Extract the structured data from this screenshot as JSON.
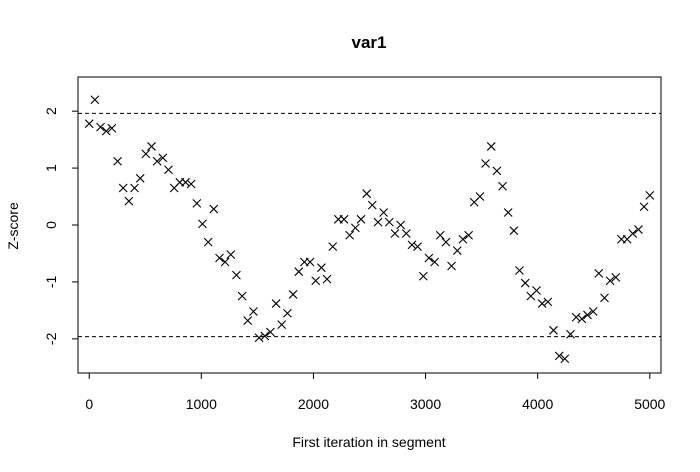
{
  "chart_data": {
    "type": "scatter",
    "title": "var1",
    "xlabel": "First iteration in segment",
    "ylabel": "Z-score",
    "xlim": [
      -100,
      5100
    ],
    "ylim": [
      -2.6,
      2.6
    ],
    "xticks": [
      0,
      1000,
      2000,
      3000,
      4000,
      5000
    ],
    "xtick_labels": [
      "0",
      "1000",
      "2000",
      "3000",
      "4000",
      "5000"
    ],
    "yticks": [
      -2,
      -1,
      0,
      1,
      2
    ],
    "ytick_labels": [
      "-2",
      "-1",
      "0",
      "1",
      "2"
    ],
    "reference_lines": [
      1.96,
      -1.96
    ],
    "marker": "x",
    "colors": {
      "points": "#000000",
      "axis": "#000000",
      "reference": "#000000"
    },
    "x": [
      0,
      51,
      101,
      152,
      202,
      253,
      303,
      354,
      404,
      455,
      505,
      556,
      606,
      657,
      707,
      758,
      808,
      859,
      909,
      960,
      1010,
      1061,
      1111,
      1162,
      1212,
      1263,
      1313,
      1364,
      1414,
      1465,
      1515,
      1566,
      1616,
      1667,
      1717,
      1768,
      1818,
      1869,
      1919,
      1970,
      2020,
      2071,
      2121,
      2172,
      2222,
      2273,
      2323,
      2374,
      2424,
      2475,
      2525,
      2576,
      2626,
      2677,
      2727,
      2778,
      2828,
      2879,
      2929,
      2980,
      3030,
      3081,
      3131,
      3182,
      3232,
      3283,
      3333,
      3384,
      3434,
      3485,
      3535,
      3586,
      3636,
      3687,
      3737,
      3788,
      3838,
      3889,
      3939,
      3990,
      4040,
      4091,
      4141,
      4192,
      4242,
      4293,
      4343,
      4394,
      4444,
      4495,
      4545,
      4596,
      4646,
      4697,
      4747,
      4798,
      4848,
      4899,
      4949,
      5000
    ],
    "y": [
      1.78,
      2.2,
      1.72,
      1.65,
      1.7,
      1.12,
      0.65,
      0.42,
      0.65,
      0.82,
      1.25,
      1.38,
      1.12,
      1.18,
      0.97,
      0.65,
      0.75,
      0.75,
      0.72,
      0.38,
      0.02,
      -0.3,
      0.28,
      -0.58,
      -0.65,
      -0.52,
      -0.88,
      -1.25,
      -1.68,
      -1.52,
      -1.98,
      -1.95,
      -1.88,
      -1.38,
      -1.75,
      -1.55,
      -1.22,
      -0.82,
      -0.65,
      -0.65,
      -0.98,
      -0.75,
      -0.95,
      -0.38,
      0.1,
      0.1,
      -0.18,
      -0.05,
      0.1,
      0.55,
      0.35,
      0.05,
      0.22,
      0.05,
      -0.15,
      0.0,
      -0.15,
      -0.35,
      -0.38,
      -0.9,
      -0.58,
      -0.65,
      -0.18,
      -0.3,
      -0.72,
      -0.45,
      -0.25,
      -0.18,
      0.4,
      0.5,
      1.08,
      1.38,
      0.95,
      0.68,
      0.22,
      -0.1,
      -0.8,
      -1.02,
      -1.25,
      -1.15,
      -1.38,
      -1.35,
      -1.85,
      -2.3,
      -2.35,
      -1.92,
      -1.62,
      -1.65,
      -1.58,
      -1.52,
      -0.85,
      -1.28,
      -0.98,
      -0.92,
      -0.25,
      -0.25,
      -0.15,
      -0.08,
      0.32,
      0.52
    ]
  }
}
